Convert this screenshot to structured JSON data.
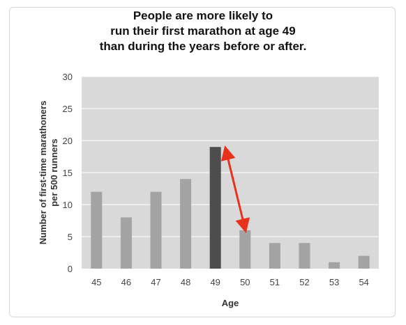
{
  "chart_data": {
    "type": "bar",
    "title_lines": [
      "People are more likely to",
      "run their first marathon at age 49",
      "than during the years before or after."
    ],
    "xlabel": "Age",
    "ylabel_lines": [
      "Number of first-time marathoners",
      "per 500 runners"
    ],
    "categories": [
      "45",
      "46",
      "47",
      "48",
      "49",
      "50",
      "51",
      "52",
      "53",
      "54"
    ],
    "values": [
      12,
      8,
      12,
      14,
      19,
      6,
      4,
      4,
      1,
      2
    ],
    "highlight_category": "49",
    "ylim": [
      0,
      30
    ],
    "yticks": [
      0,
      5,
      10,
      15,
      20,
      25,
      30
    ],
    "grid": true,
    "annotation": "double-headed arrow between age 49 bar top and age 50 bar top",
    "colors": {
      "plot_background": "#d9d9d9",
      "grid": "#ffffff",
      "bar": "#a3a3a3",
      "bar_highlight": "#4d4d4d",
      "arrow": "#e8321c"
    }
  }
}
